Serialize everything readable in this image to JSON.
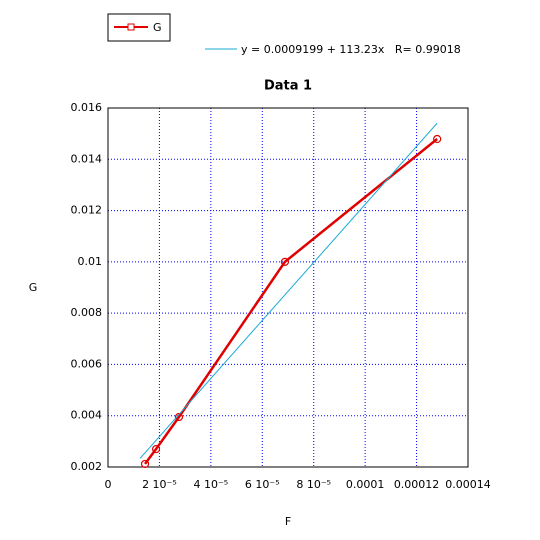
{
  "chart_data": {
    "type": "line",
    "title": "Data 1",
    "x_label": "F",
    "y_label": "G",
    "series": [
      {
        "name": "G",
        "color": "#e00000",
        "x": [
          1.44e-05,
          1.87e-05,
          2.76e-05,
          6.88e-05,
          0.000128
        ],
        "values": [
          0.00212,
          0.0027,
          0.00395,
          0.01,
          0.01479
        ]
      },
      {
        "name": "y = 0.0009199 + 113.23x   R= 0.99018",
        "color": "#1aa9d6",
        "x": [
          1.25e-05,
          0.000128
        ],
        "values": [
          0.00234,
          0.01541
        ]
      }
    ],
    "xlim": [
      0,
      0.00014
    ],
    "xticks": [
      0,
      {
        "value": 2e-05,
        "label": "2 10⁻⁵"
      },
      {
        "value": 4e-05,
        "label": "4 10⁻⁵"
      },
      {
        "value": 6e-05,
        "label": "6 10⁻⁵"
      },
      {
        "value": 8e-05,
        "label": "8 10⁻⁵"
      },
      0.0001,
      0.00012,
      0.00014
    ],
    "ylim": [
      0.002,
      0.016
    ],
    "yticks": [
      0.002,
      0.004,
      0.006,
      0.008,
      0.01,
      0.012,
      0.014,
      0.016
    ],
    "grid": true
  }
}
